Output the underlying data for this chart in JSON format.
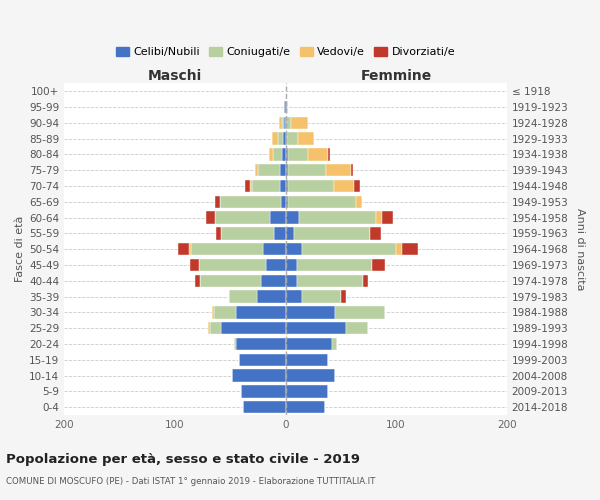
{
  "age_groups": [
    "0-4",
    "5-9",
    "10-14",
    "15-19",
    "20-24",
    "25-29",
    "30-34",
    "35-39",
    "40-44",
    "45-49",
    "50-54",
    "55-59",
    "60-64",
    "65-69",
    "70-74",
    "75-79",
    "80-84",
    "85-89",
    "90-94",
    "95-99",
    "100+"
  ],
  "birth_years": [
    "2014-2018",
    "2009-2013",
    "2004-2008",
    "1999-2003",
    "1994-1998",
    "1989-1993",
    "1984-1988",
    "1979-1983",
    "1974-1978",
    "1969-1973",
    "1964-1968",
    "1959-1963",
    "1954-1958",
    "1949-1953",
    "1944-1948",
    "1939-1943",
    "1934-1938",
    "1929-1933",
    "1924-1928",
    "1919-1923",
    "≤ 1918"
  ],
  "maschi_celibi": [
    38,
    40,
    48,
    42,
    45,
    58,
    45,
    26,
    22,
    18,
    20,
    10,
    14,
    4,
    5,
    5,
    3,
    2,
    1,
    1,
    0
  ],
  "maschi_coniugati": [
    0,
    0,
    0,
    0,
    2,
    10,
    20,
    25,
    55,
    60,
    65,
    48,
    50,
    55,
    25,
    20,
    8,
    5,
    2,
    0,
    0
  ],
  "maschi_vedovi": [
    0,
    0,
    0,
    0,
    0,
    2,
    1,
    0,
    0,
    0,
    2,
    0,
    0,
    0,
    2,
    3,
    4,
    5,
    3,
    0,
    0
  ],
  "maschi_divorziati": [
    0,
    0,
    0,
    0,
    0,
    0,
    0,
    0,
    5,
    8,
    10,
    5,
    8,
    5,
    5,
    0,
    0,
    0,
    0,
    0,
    0
  ],
  "femmine_nubili": [
    36,
    38,
    45,
    38,
    42,
    55,
    45,
    15,
    10,
    10,
    15,
    8,
    12,
    2,
    2,
    2,
    2,
    1,
    0,
    1,
    0
  ],
  "femmine_coniugate": [
    0,
    0,
    0,
    0,
    5,
    20,
    45,
    35,
    60,
    68,
    85,
    68,
    70,
    62,
    42,
    35,
    18,
    10,
    5,
    1,
    0
  ],
  "femmine_vedove": [
    0,
    0,
    0,
    0,
    0,
    0,
    0,
    0,
    0,
    0,
    5,
    0,
    5,
    5,
    18,
    22,
    18,
    15,
    15,
    0,
    0
  ],
  "femmine_divorziate": [
    0,
    0,
    0,
    0,
    0,
    0,
    0,
    5,
    5,
    12,
    15,
    10,
    10,
    0,
    5,
    2,
    2,
    0,
    0,
    0,
    0
  ],
  "col_celibi": "#4472C4",
  "col_coniugati": "#b8cfa0",
  "col_vedovi": "#f5c26b",
  "col_divorziati": "#c0392b",
  "xlim": 200,
  "title": "Popolazione per età, sesso e stato civile - 2019",
  "subtitle": "COMUNE DI MOSCUFO (PE) - Dati ISTAT 1° gennaio 2019 - Elaborazione TUTTITALIA.IT",
  "label_maschi": "Maschi",
  "label_femmine": "Femmine",
  "ylabel_left": "Fasce di età",
  "ylabel_right": "Anni di nascita",
  "legend_labels": [
    "Celibi/Nubili",
    "Coniugati/e",
    "Vedovi/e",
    "Divorziati/e"
  ],
  "bg_color": "#f5f5f5",
  "plot_bg": "#ffffff"
}
